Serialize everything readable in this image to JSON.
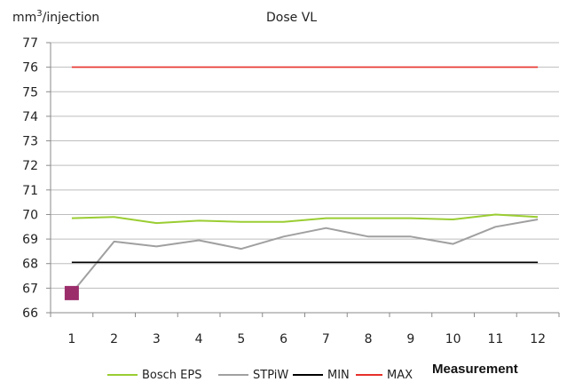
{
  "chart_data": {
    "type": "line",
    "title": "Dose VL",
    "ylabel_prefix": "mm",
    "ylabel_sup": "3",
    "ylabel_suffix": "/injection",
    "xlabel": "Measurement",
    "categories": [
      "1",
      "2",
      "3",
      "4",
      "5",
      "6",
      "7",
      "8",
      "9",
      "10",
      "11",
      "12"
    ],
    "ylim": [
      66,
      77
    ],
    "yticks": [
      66,
      67,
      68,
      69,
      70,
      71,
      72,
      73,
      74,
      75,
      76,
      77
    ],
    "grid": true,
    "legend_position": "bottom",
    "series": [
      {
        "name": "Bosch EPS",
        "color": "#9acd32",
        "values": [
          69.85,
          69.9,
          69.65,
          69.75,
          69.7,
          69.7,
          69.85,
          69.85,
          69.85,
          69.8,
          70.0,
          69.9
        ]
      },
      {
        "name": "STPiW",
        "color": "#a0a0a0",
        "values": [
          66.8,
          68.9,
          68.7,
          68.95,
          68.6,
          69.1,
          69.45,
          69.1,
          69.1,
          68.8,
          69.5,
          69.8
        ]
      },
      {
        "name": "MIN",
        "color": "#000000",
        "values": [
          68.05,
          68.05,
          68.05,
          68.05,
          68.05,
          68.05,
          68.05,
          68.05,
          68.05,
          68.05,
          68.05,
          68.05
        ]
      },
      {
        "name": "MAX",
        "color": "#e8302a",
        "values": [
          76.0,
          76.0,
          76.0,
          76.0,
          76.0,
          76.0,
          76.0,
          76.0,
          76.0,
          76.0,
          76.0,
          76.0
        ]
      }
    ],
    "marker": {
      "series": "STPiW",
      "x": "1",
      "y": 66.8,
      "color": "#9b2d6b"
    }
  }
}
